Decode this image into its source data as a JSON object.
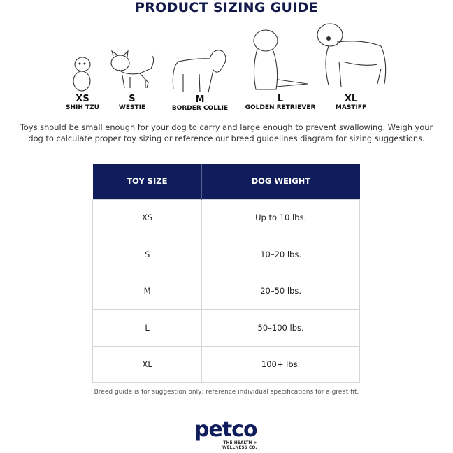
{
  "title": "PRODUCT SIZING GUIDE",
  "dogs": [
    {
      "size": "XS",
      "breed": "SHIH TZU",
      "icon": "shih-tzu-icon"
    },
    {
      "size": "S",
      "breed": "WESTIE",
      "icon": "westie-icon"
    },
    {
      "size": "M",
      "breed": "BORDER COLLIE",
      "icon": "border-collie-icon"
    },
    {
      "size": "L",
      "breed": "GOLDEN RETRIEVER",
      "icon": "golden-retriever-icon"
    },
    {
      "size": "XL",
      "breed": "MASTIFF",
      "icon": "mastiff-icon"
    }
  ],
  "description": "Toys should be small enough for your dog to carry and large enough to prevent swallowing. Weigh your dog to calculate proper toy sizing or reference our breed guidelines diagram for sizing suggestions.",
  "table": {
    "headers": [
      "TOY SIZE",
      "DOG WEIGHT"
    ],
    "rows": [
      [
        "XS",
        "Up to 10 lbs."
      ],
      [
        "S",
        "10–20 lbs."
      ],
      [
        "M",
        "20–50 lbs."
      ],
      [
        "L",
        "50–100 lbs."
      ],
      [
        "XL",
        "100+ lbs."
      ]
    ]
  },
  "note": "Breed guide is for suggestion only; reference individual specifications for a great fit.",
  "logo": {
    "word": "petco",
    "tagline_1": "THE HEALTH +",
    "tagline_2": "WELLNESS CO."
  },
  "colors": {
    "navy": "#0f1d5c"
  }
}
